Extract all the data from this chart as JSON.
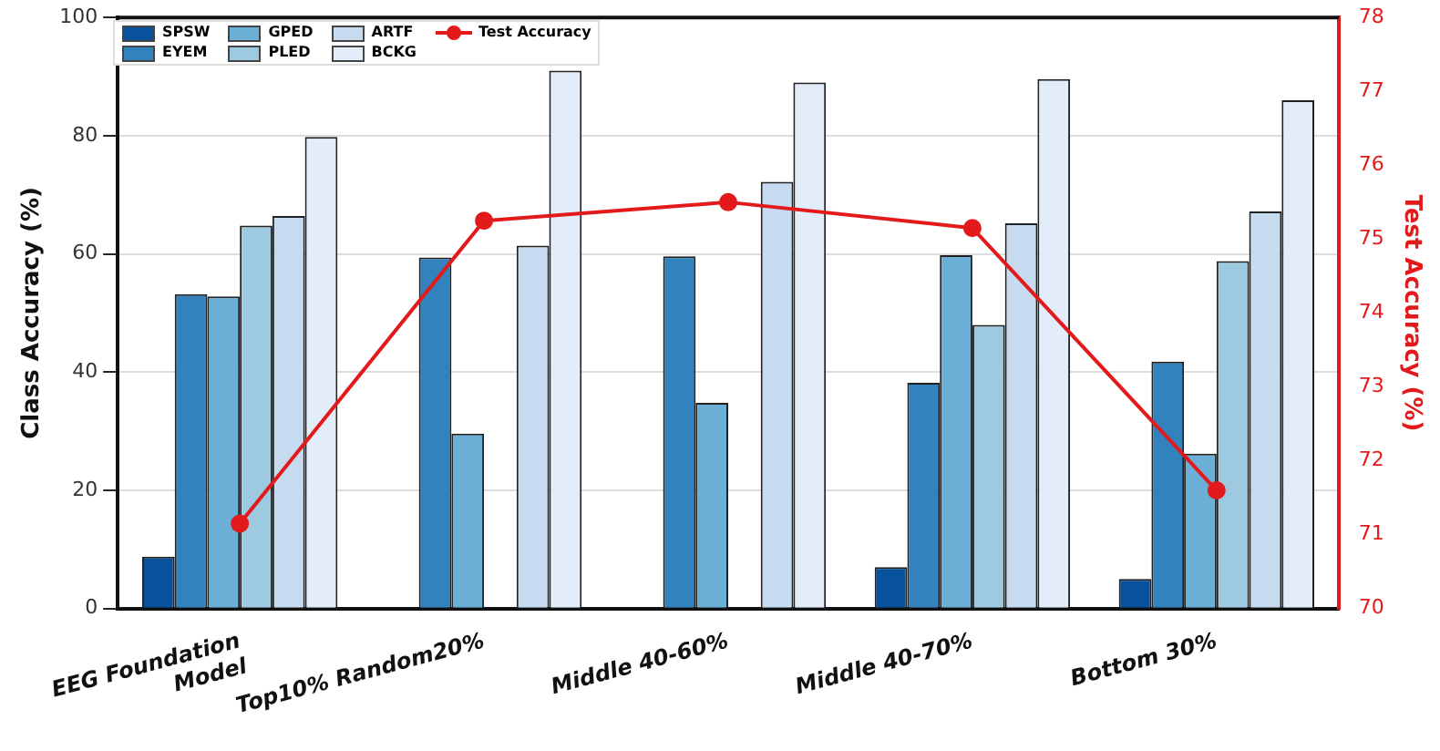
{
  "chart_data": {
    "type": "bar",
    "categories": [
      "EEG Foundation\nModel",
      "Top10% Random20%",
      "Middle 40-60%",
      "Middle 40-70%",
      "Bottom 30%"
    ],
    "ylabel": "Class Accuracy (%)",
    "y2label": "Test Accuracy (%)",
    "ylim": [
      0,
      100
    ],
    "yticks": [
      0,
      20,
      40,
      60,
      80,
      100
    ],
    "y2lim": [
      70,
      78
    ],
    "y2ticks": [
      70,
      71,
      72,
      73,
      74,
      75,
      76,
      77,
      78
    ],
    "grid": "y",
    "legend": "top left",
    "marker": "circle",
    "line_style": "solid",
    "series": [
      {
        "name": "SPSW",
        "color": "#08519c",
        "values": [
          8.8,
          null,
          null,
          7.0,
          5.0
        ]
      },
      {
        "name": "EYEM",
        "color": "#3182bd",
        "values": [
          53.2,
          59.4,
          59.6,
          38.2,
          41.8
        ]
      },
      {
        "name": "GPED",
        "color": "#6baed6",
        "values": [
          52.8,
          29.6,
          34.8,
          59.8,
          26.2
        ]
      },
      {
        "name": "PLED",
        "color": "#9ecae1",
        "values": [
          64.8,
          null,
          null,
          48.0,
          58.8
        ]
      },
      {
        "name": "ARTF",
        "color": "#c6dbef",
        "values": [
          66.4,
          61.4,
          72.2,
          65.2,
          67.2
        ]
      },
      {
        "name": "BCKG",
        "color": "#e3edf9",
        "values": [
          79.8,
          91.0,
          89.0,
          89.6,
          86.0
        ]
      },
      {
        "name": "Test Accuracy",
        "type": "line",
        "axis": "y2",
        "color": "#e31a1c",
        "values": [
          71.15,
          75.25,
          75.5,
          75.15,
          71.6
        ]
      }
    ]
  }
}
